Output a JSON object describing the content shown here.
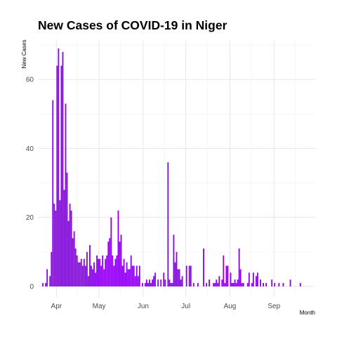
{
  "chart_data": {
    "type": "bar",
    "title": "New Cases of COVID-19 in Niger",
    "xlabel": "Month",
    "ylabel": "New Cases",
    "xlim": [
      "2020-03-19",
      "2020-09-30"
    ],
    "ylim": [
      0,
      72
    ],
    "x_ticks": [
      {
        "date": "2020-04-01",
        "label": "Apr"
      },
      {
        "date": "2020-05-01",
        "label": "May"
      },
      {
        "date": "2020-06-01",
        "label": "Jun"
      },
      {
        "date": "2020-07-01",
        "label": "Jul"
      },
      {
        "date": "2020-08-01",
        "label": "Aug"
      },
      {
        "date": "2020-09-01",
        "label": "Sep"
      }
    ],
    "y_ticks": [
      0,
      20,
      40,
      60
    ],
    "grid": true,
    "bar_color": "#8b00ee",
    "x": [
      "2020-03-22",
      "2020-03-24",
      "2020-03-25",
      "2020-03-27",
      "2020-03-28",
      "2020-03-29",
      "2020-03-30",
      "2020-03-31",
      "2020-04-01",
      "2020-04-02",
      "2020-04-03",
      "2020-04-04",
      "2020-04-05",
      "2020-04-06",
      "2020-04-07",
      "2020-04-08",
      "2020-04-09",
      "2020-04-10",
      "2020-04-11",
      "2020-04-12",
      "2020-04-13",
      "2020-04-14",
      "2020-04-15",
      "2020-04-16",
      "2020-04-17",
      "2020-04-18",
      "2020-04-19",
      "2020-04-20",
      "2020-04-21",
      "2020-04-22",
      "2020-04-23",
      "2020-04-24",
      "2020-04-25",
      "2020-04-26",
      "2020-04-27",
      "2020-04-28",
      "2020-04-29",
      "2020-04-30",
      "2020-05-01",
      "2020-05-02",
      "2020-05-03",
      "2020-05-04",
      "2020-05-05",
      "2020-05-06",
      "2020-05-07",
      "2020-05-08",
      "2020-05-09",
      "2020-05-10",
      "2020-05-11",
      "2020-05-12",
      "2020-05-13",
      "2020-05-14",
      "2020-05-15",
      "2020-05-16",
      "2020-05-17",
      "2020-05-18",
      "2020-05-19",
      "2020-05-20",
      "2020-05-21",
      "2020-05-22",
      "2020-05-23",
      "2020-05-24",
      "2020-05-25",
      "2020-05-26",
      "2020-05-27",
      "2020-05-28",
      "2020-05-29",
      "2020-05-31",
      "2020-06-02",
      "2020-06-03",
      "2020-06-04",
      "2020-06-05",
      "2020-06-06",
      "2020-06-07",
      "2020-06-08",
      "2020-06-09",
      "2020-06-11",
      "2020-06-13",
      "2020-06-15",
      "2020-06-16",
      "2020-06-18",
      "2020-06-19",
      "2020-06-20",
      "2020-06-21",
      "2020-06-22",
      "2020-06-23",
      "2020-06-24",
      "2020-06-25",
      "2020-06-26",
      "2020-06-27",
      "2020-06-28",
      "2020-07-01",
      "2020-07-03",
      "2020-07-04",
      "2020-07-06",
      "2020-07-09",
      "2020-07-13",
      "2020-07-15",
      "2020-07-17",
      "2020-07-20",
      "2020-07-21",
      "2020-07-22",
      "2020-07-23",
      "2020-07-24",
      "2020-07-26",
      "2020-07-27",
      "2020-07-28",
      "2020-07-29",
      "2020-07-30",
      "2020-08-01",
      "2020-08-02",
      "2020-08-03",
      "2020-08-04",
      "2020-08-05",
      "2020-08-06",
      "2020-08-07",
      "2020-08-08",
      "2020-08-09",
      "2020-08-10",
      "2020-08-13",
      "2020-08-14",
      "2020-08-16",
      "2020-08-17",
      "2020-08-19",
      "2020-08-20",
      "2020-08-22",
      "2020-08-24",
      "2020-08-26",
      "2020-08-30",
      "2020-09-01",
      "2020-09-04",
      "2020-09-07",
      "2020-09-12",
      "2020-09-19"
    ],
    "values": [
      1,
      1,
      5,
      3,
      10,
      54,
      24,
      22,
      64,
      69,
      25,
      64,
      68,
      28,
      53,
      33,
      19,
      24,
      22,
      14,
      16,
      11,
      9,
      7,
      7,
      8,
      6,
      8,
      6,
      10,
      3,
      12,
      6,
      5,
      7,
      4,
      9,
      8,
      8,
      6,
      9,
      5,
      8,
      9,
      13,
      14,
      20,
      9,
      6,
      8,
      9,
      22,
      13,
      15,
      6,
      8,
      4,
      7,
      5,
      5,
      9,
      6,
      6,
      3,
      6,
      3,
      6,
      1,
      1,
      2,
      1,
      2,
      1,
      2,
      3,
      4,
      2,
      2,
      4,
      2,
      36,
      2,
      1,
      1,
      15,
      7,
      10,
      5,
      5,
      2,
      3,
      6,
      6,
      6,
      1,
      1,
      11,
      1,
      2,
      1,
      1,
      2,
      1,
      3,
      2,
      9,
      1,
      6,
      6,
      4,
      1,
      1,
      2,
      1,
      2,
      11,
      5,
      1,
      1,
      1,
      4,
      1,
      4,
      3,
      4,
      2,
      1,
      1,
      2,
      1,
      1,
      1,
      2,
      1
    ]
  }
}
